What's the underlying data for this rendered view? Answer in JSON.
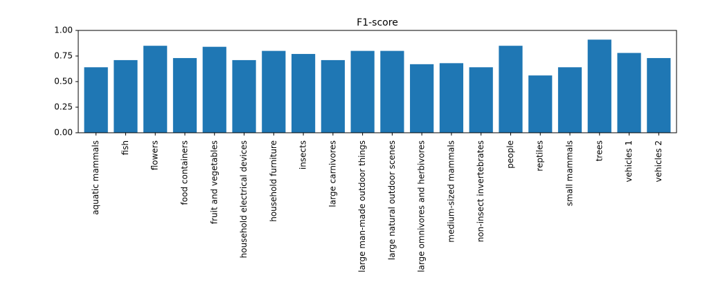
{
  "chart_data": {
    "type": "bar",
    "title": "F1-score",
    "xlabel": "",
    "ylabel": "",
    "ylim": [
      0,
      1.0
    ],
    "yticks": [
      "0.00",
      "0.25",
      "0.50",
      "0.75",
      "1.00"
    ],
    "grid": false,
    "bar_color": "#1f77b4",
    "categories": [
      "aquatic mammals",
      "fish",
      "flowers",
      "food containers",
      "fruit and vegetables",
      "household electrical devices",
      "household furniture",
      "insects",
      "large carnivores",
      "large man-made outdoor things",
      "large natural outdoor scenes",
      "large omnivores and herbivores",
      "medium-sized mammals",
      "non-insect invertebrates",
      "people",
      "reptiles",
      "small mammals",
      "trees",
      "vehicles 1",
      "vehicles 2"
    ],
    "values": [
      0.64,
      0.71,
      0.85,
      0.73,
      0.84,
      0.71,
      0.8,
      0.77,
      0.71,
      0.8,
      0.8,
      0.67,
      0.68,
      0.64,
      0.85,
      0.56,
      0.64,
      0.91,
      0.78,
      0.73
    ]
  }
}
